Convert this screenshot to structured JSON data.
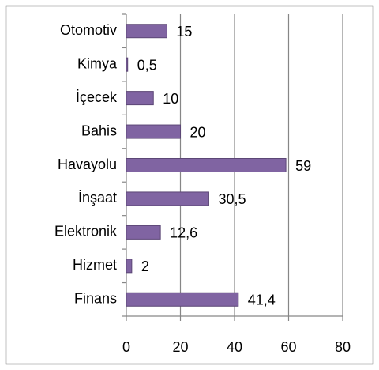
{
  "chart_data": {
    "type": "hbar",
    "categories": [
      "Otomotiv",
      "Kimya",
      "İçecek",
      "Bahis",
      "Havayolu",
      "İnşaat",
      "Elektronik",
      "Hizmet",
      "Finans"
    ],
    "values": [
      15,
      0.5,
      10,
      20,
      59,
      30.5,
      12.6,
      2,
      41.4
    ],
    "value_labels": [
      "15",
      "0,5",
      "10",
      "20",
      "59",
      "30,5",
      "12,6",
      "2",
      "41,4"
    ],
    "color": "#8064a2",
    "xlim": [
      0,
      80
    ],
    "xticks": [
      0,
      20,
      40,
      60,
      80
    ],
    "grid": true
  }
}
